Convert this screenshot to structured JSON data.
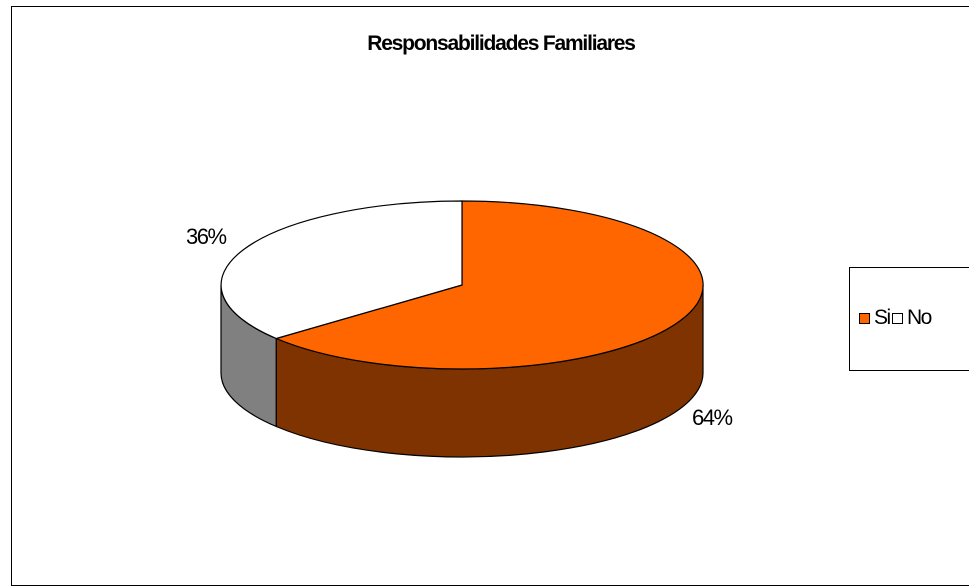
{
  "chart_data": {
    "type": "pie",
    "title": "Responsabilidades Familiares",
    "categories": [
      "Si",
      "No"
    ],
    "values": [
      64,
      36
    ],
    "data_labels": [
      "64%",
      "36%"
    ],
    "colors": {
      "Si": "#ff6600",
      "No": "#ffffff"
    },
    "side_colors": {
      "Si": "#7f3300",
      "No": "#808080"
    },
    "three_d": true,
    "legend_position": "right"
  }
}
